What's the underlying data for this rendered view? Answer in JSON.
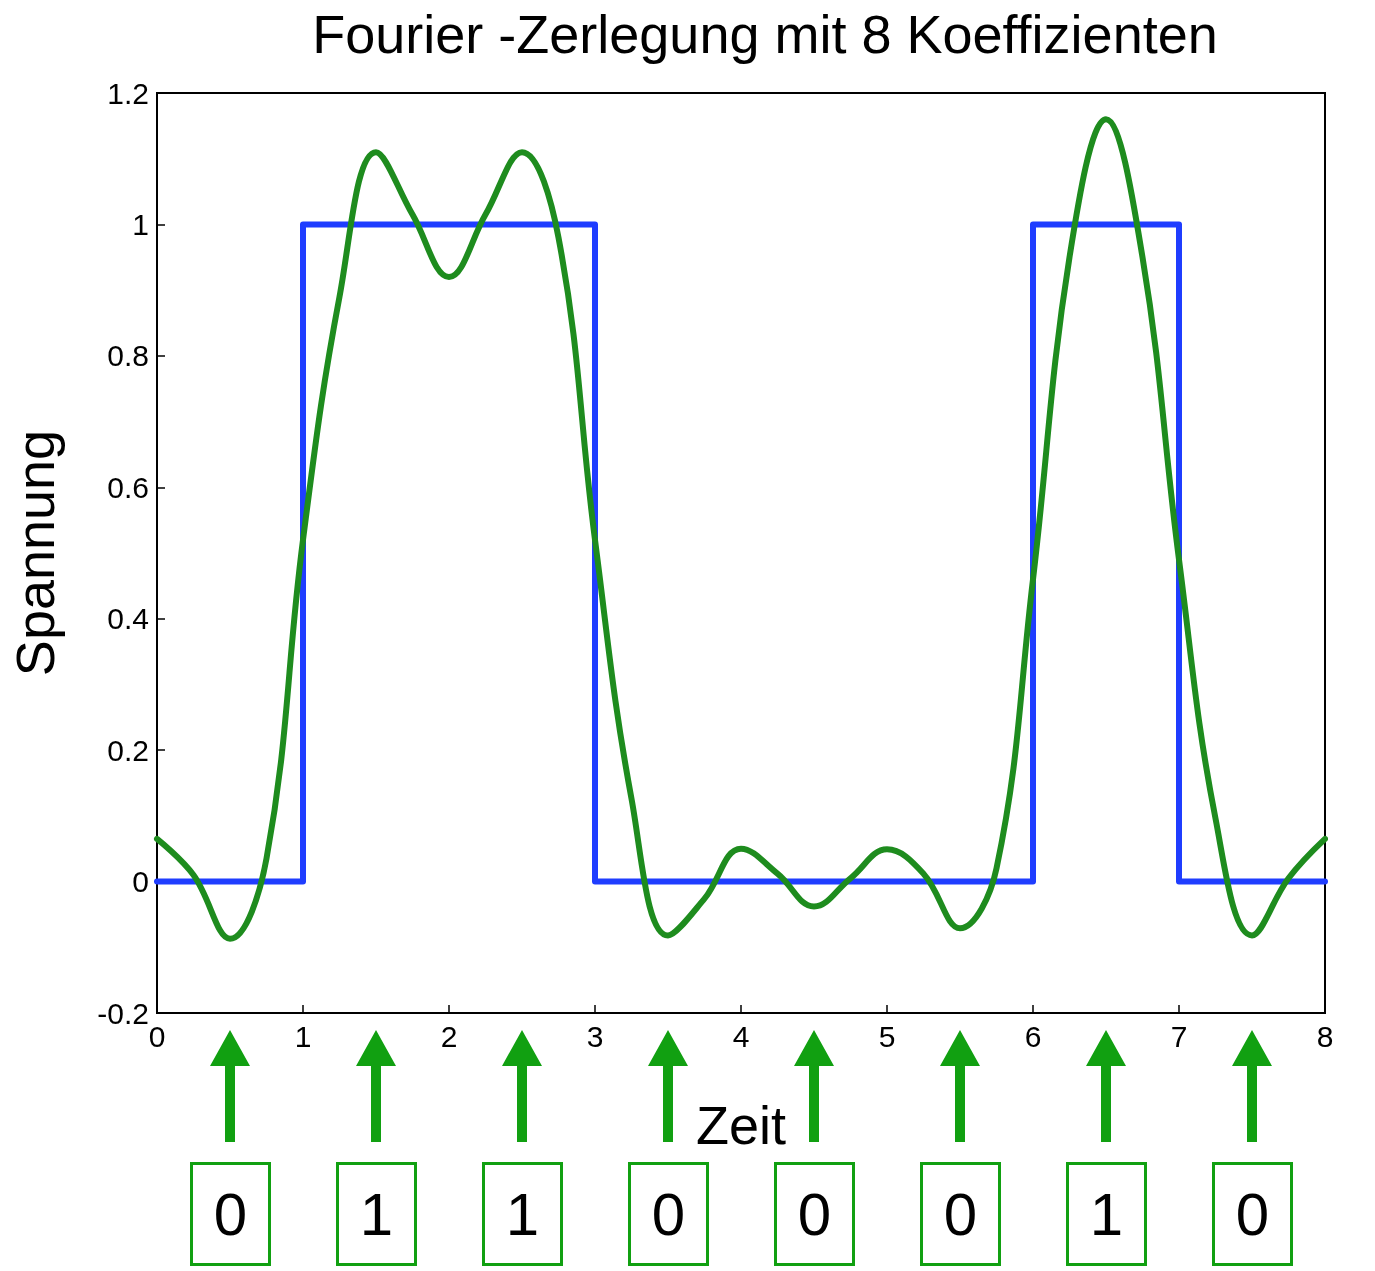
{
  "chart_data": {
    "type": "line",
    "title": "Fourier -Zerlegung mit 8 Koeffizienten",
    "xlabel": "Zeit",
    "ylabel": "Spannung",
    "xlim": [
      0,
      8
    ],
    "xticks": [
      0,
      1,
      2,
      3,
      4,
      5,
      6,
      7,
      8
    ],
    "ylim": [
      -0.2,
      1.2
    ],
    "yticks": [
      -0.2,
      0,
      0.2,
      0.4,
      0.6,
      0.8,
      1,
      1.2
    ],
    "marker": "none",
    "line_style": "solid",
    "series": [
      {
        "type": "step",
        "color": "#1f3dff",
        "x": [
          0,
          1,
          3,
          6,
          7,
          8
        ],
        "values": [
          0,
          1,
          0,
          1,
          0,
          0
        ]
      },
      {
        "color": "#1e8c1e",
        "x": [
          0,
          0.25,
          0.5,
          0.75,
          1,
          1.25,
          1.5,
          1.75,
          2,
          2.25,
          2.5,
          2.75,
          3,
          3.25,
          3.5,
          3.75,
          4,
          4.25,
          4.5,
          4.75,
          5,
          5.25,
          5.5,
          5.75,
          6,
          6.25,
          6.5,
          6.75,
          7,
          7.25,
          7.5,
          7.75,
          8
        ],
        "values": [
          0.065,
          0.01,
          -0.087,
          0.035,
          0.52,
          0.89,
          1.11,
          1.015,
          0.92,
          1.015,
          1.11,
          0.98,
          0.52,
          0.126,
          -0.082,
          -0.026,
          0.05,
          0.012,
          -0.038,
          0.005,
          0.049,
          0.012,
          -0.071,
          0.02,
          0.46,
          0.95,
          1.16,
          0.95,
          0.49,
          0.096,
          -0.082,
          0.005,
          0.065
        ]
      }
    ],
    "annotations": [
      "0",
      "1",
      "1",
      "0",
      "0",
      "0",
      "1",
      "0"
    ]
  }
}
